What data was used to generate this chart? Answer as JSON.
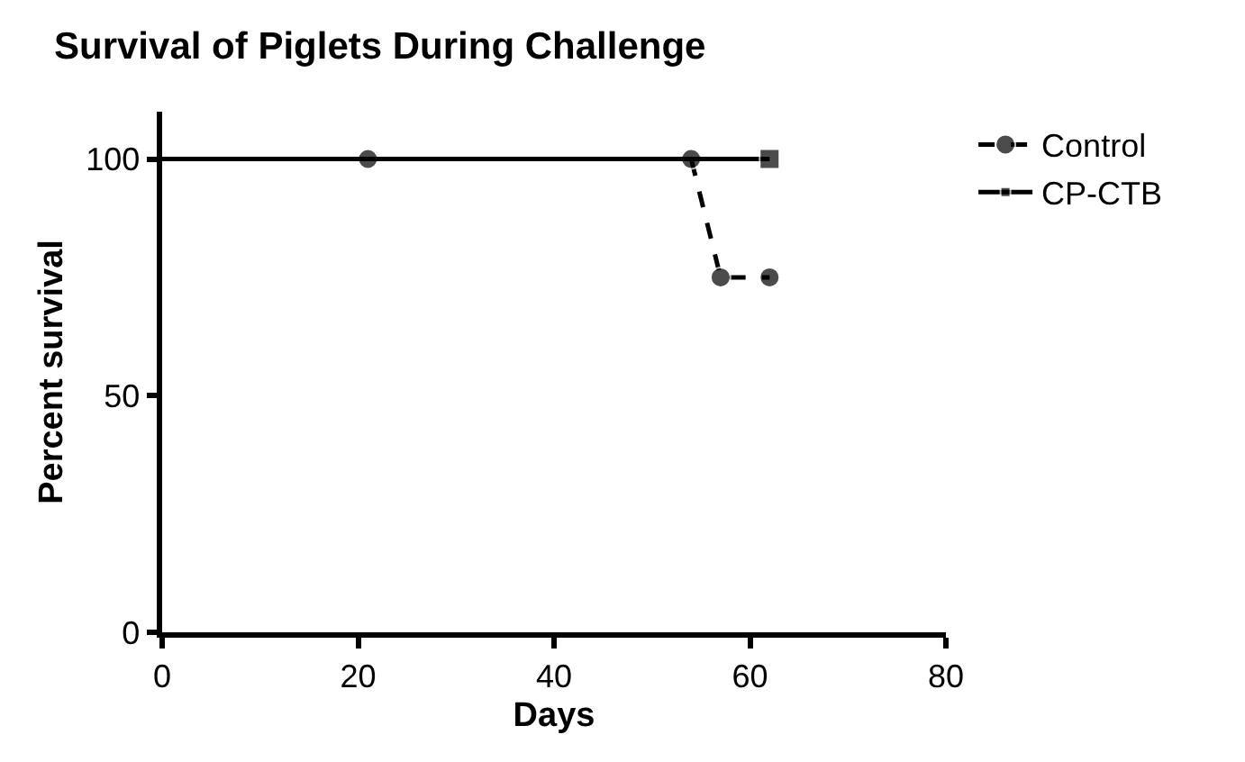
{
  "chart_data": {
    "type": "line",
    "title": "Survival of Piglets During Challenge",
    "xlabel": "Days",
    "ylabel": "Percent survival",
    "series": [
      {
        "name": "Control",
        "color": "#000000",
        "marker": "circle",
        "line_style": "dashed",
        "x": [
          21,
          54,
          57,
          62
        ],
        "values": [
          100,
          100,
          75,
          75
        ]
      },
      {
        "name": "CP-CTB",
        "color": "#000000",
        "marker": "square",
        "line_style": "solid",
        "x": [
          0,
          62
        ],
        "values": [
          100,
          100
        ]
      }
    ],
    "xlim": [
      0,
      80
    ],
    "xticks": [
      0,
      20,
      40,
      60,
      80
    ],
    "ylim": [
      0,
      110
    ],
    "yticks": [
      0,
      50,
      100
    ],
    "grid": false,
    "legend": "top right"
  }
}
